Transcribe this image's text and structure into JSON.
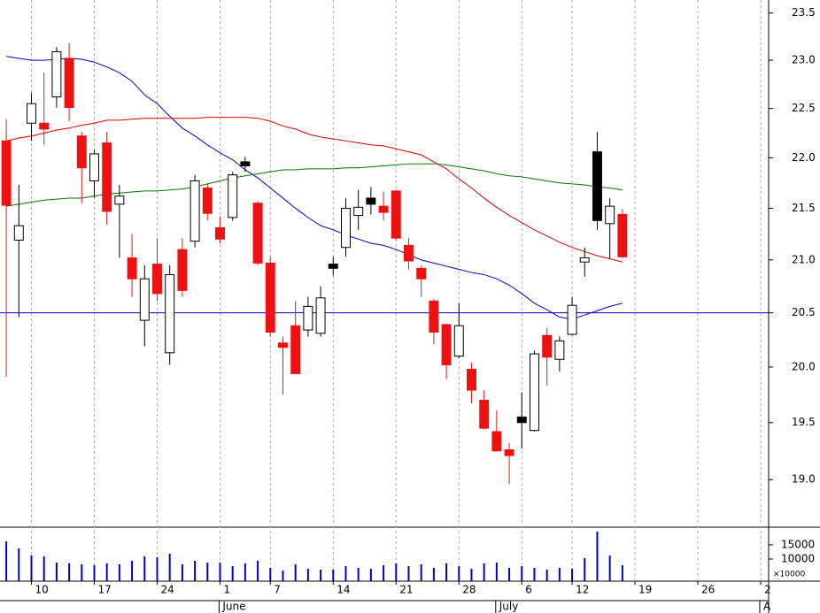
{
  "chart_data": {
    "type": "candlestick",
    "log_scale": true,
    "xlim": [
      -0.5,
      60.63
    ],
    "xticks": [
      {
        "value": 2,
        "label": "10"
      },
      {
        "value": 7,
        "label": "17"
      },
      {
        "value": 12,
        "label": "24"
      },
      {
        "value": 17,
        "label": "1"
      },
      {
        "value": 21,
        "label": "7"
      },
      {
        "value": 26,
        "label": "14"
      },
      {
        "value": 31,
        "label": "21"
      },
      {
        "value": 36,
        "label": "28"
      },
      {
        "value": 41,
        "label": "6"
      },
      {
        "value": 45,
        "label": "12"
      },
      {
        "value": 50,
        "label": "19"
      },
      {
        "value": 55,
        "label": "26"
      },
      {
        "value": 60,
        "label": "2"
      }
    ],
    "month_labels": [
      {
        "value": 17,
        "label": "June"
      },
      {
        "value": 39,
        "label": "July"
      },
      {
        "value": 60,
        "label": "A"
      }
    ],
    "ylim": [
      18.6,
      23.64
    ],
    "yticks": [
      {
        "value": 19,
        "label": "19.0"
      },
      19.5,
      {
        "value": 20,
        "label": "20.0"
      },
      20.5,
      {
        "value": 21,
        "label": "21.0"
      },
      21.5,
      {
        "value": 22,
        "label": "22.0"
      },
      22.5,
      {
        "value": 23,
        "label": "23.0"
      },
      23.5
    ],
    "up_color": "#000000",
    "down_color": "#ee1111",
    "open": [
      22.17,
      21.19,
      22.35,
      22.35,
      22.62,
      23.02,
      22.22,
      21.77,
      22.15,
      21.54,
      21.02,
      20.43,
      20.96,
      20.13,
      21.1,
      21.18,
      21.7,
      21.31,
      21.41,
      21.96,
      21.55,
      20.97,
      20.22,
      20.38,
      20.34,
      20.31,
      20.96,
      21.12,
      21.43,
      21.6,
      21.52,
      21.67,
      21.14,
      20.92,
      20.61,
      20.39,
      20.1,
      19.98,
      19.7,
      19.42,
      19.26,
      19.55,
      19.43,
      20.29,
      20.07,
      20.3,
      20.98,
      22.06,
      21.35,
      21.44
    ],
    "high": [
      22.39,
      21.73,
      22.66,
      22.87,
      23.14,
      23.18,
      22.26,
      22.08,
      22.26,
      21.73,
      21.25,
      20.95,
      21.21,
      20.95,
      21.21,
      21.83,
      21.74,
      21.42,
      21.86,
      22.01,
      21.57,
      21.03,
      20.28,
      20.61,
      20.65,
      20.75,
      21.03,
      21.6,
      21.68,
      21.71,
      21.66,
      21.68,
      21.21,
      20.95,
      20.63,
      20.4,
      20.59,
      20.04,
      19.79,
      19.61,
      19.32,
      19.77,
      20.15,
      20.36,
      20.28,
      20.65,
      21.12,
      22.26,
      21.6,
      21.49
    ],
    "low": [
      19.91,
      20.46,
      22.17,
      22.13,
      22.51,
      22.37,
      21.55,
      21.6,
      21.34,
      21.02,
      20.65,
      20.19,
      20.61,
      20.02,
      20.65,
      21.12,
      21.38,
      21.16,
      21.38,
      21.86,
      20.95,
      20.28,
      19.75,
      19.94,
      20.28,
      20.28,
      20.85,
      21.03,
      21.29,
      21.44,
      21.38,
      21.19,
      20.91,
      20.65,
      20.21,
      19.89,
      20.08,
      19.67,
      19.44,
      19.25,
      18.96,
      19.27,
      19.42,
      19.83,
      19.96,
      20.29,
      20.84,
      21.29,
      21.01,
      21.02
    ],
    "close": [
      21.53,
      21.33,
      22.55,
      22.29,
      23.09,
      22.51,
      21.9,
      22.04,
      21.47,
      21.62,
      20.82,
      20.82,
      20.68,
      20.86,
      20.71,
      21.77,
      21.45,
      21.2,
      21.83,
      21.92,
      20.97,
      20.32,
      20.18,
      19.94,
      20.56,
      20.64,
      20.92,
      21.5,
      21.51,
      21.54,
      21.46,
      21.21,
      20.99,
      20.82,
      20.32,
      20.02,
      20.38,
      19.79,
      19.45,
      19.25,
      19.21,
      19.5,
      20.12,
      20.09,
      20.24,
      20.57,
      21.02,
      21.38,
      21.52,
      21.03
    ],
    "moving_averages": [
      {
        "color": "#0000cc",
        "values": [
          23.04,
          23.02,
          23.0,
          23.0,
          23.01,
          23.02,
          23.01,
          22.98,
          22.93,
          22.87,
          22.78,
          22.64,
          22.55,
          22.42,
          22.3,
          22.22,
          22.13,
          22.05,
          21.98,
          21.88,
          21.8,
          21.7,
          21.6,
          21.5,
          21.41,
          21.33,
          21.29,
          21.24,
          21.2,
          21.16,
          21.14,
          21.1,
          21.05,
          21.0,
          20.97,
          20.94,
          20.91,
          20.88,
          20.86,
          20.82,
          20.76,
          20.68,
          20.59,
          20.53,
          20.46,
          20.44,
          20.48,
          20.52,
          20.56,
          20.59
        ]
      },
      {
        "color": "#dd0000",
        "values": [
          22.17,
          22.2,
          22.22,
          22.25,
          22.28,
          22.3,
          22.33,
          22.35,
          22.38,
          22.38,
          22.39,
          22.4,
          22.4,
          22.4,
          22.4,
          22.4,
          22.41,
          22.41,
          22.41,
          22.41,
          22.4,
          22.37,
          22.32,
          22.29,
          22.24,
          22.21,
          22.19,
          22.17,
          22.15,
          22.13,
          22.12,
          22.09,
          22.06,
          22.03,
          21.96,
          21.89,
          21.79,
          21.7,
          21.6,
          21.51,
          21.43,
          21.36,
          21.29,
          21.23,
          21.17,
          21.12,
          21.08,
          21.04,
          21.01,
          20.98
        ]
      },
      {
        "color": "#007700",
        "values": [
          21.52,
          21.54,
          21.56,
          21.58,
          21.59,
          21.6,
          21.6,
          21.62,
          21.64,
          21.65,
          21.66,
          21.67,
          21.67,
          21.68,
          21.69,
          21.71,
          21.74,
          21.77,
          21.8,
          21.82,
          21.84,
          21.86,
          21.88,
          21.88,
          21.89,
          21.89,
          21.89,
          21.9,
          21.9,
          21.91,
          21.92,
          21.93,
          21.94,
          21.94,
          21.94,
          21.93,
          21.91,
          21.89,
          21.87,
          21.84,
          21.82,
          21.81,
          21.79,
          21.77,
          21.75,
          21.74,
          21.73,
          21.71,
          21.7,
          21.68
        ]
      }
    ],
    "reference_line": {
      "value": 20.5,
      "color": "#0000cc"
    },
    "volume": {
      "color": "#0000cc",
      "ylim": [
        2200,
        20900
      ],
      "yticks": [
        10000,
        15000
      ],
      "unit_label": "×10000",
      "values": [
        16250,
        13750,
        11250,
        10940,
        8750,
        8440,
        8125,
        7810,
        8440,
        8125,
        9375,
        10940,
        10625,
        11875,
        8125,
        9375,
        8750,
        8750,
        7500,
        8440,
        9375,
        6875,
        5940,
        8125,
        6560,
        6250,
        6250,
        7500,
        6875,
        6560,
        7810,
        8440,
        7500,
        8125,
        6875,
        8440,
        7500,
        6560,
        8440,
        8750,
        6875,
        7500,
        6875,
        6250,
        6875,
        6560,
        10310,
        19690,
        11250,
        7810
      ]
    }
  }
}
